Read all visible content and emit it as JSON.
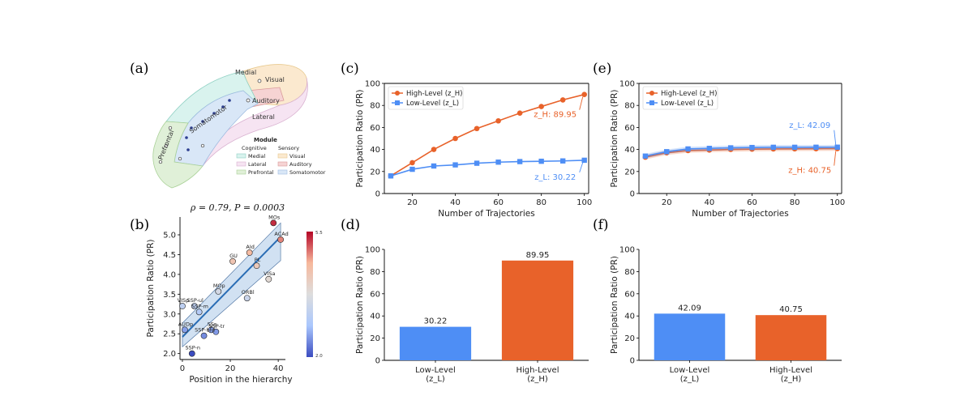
{
  "panels": {
    "a": {
      "letter": "(a)"
    },
    "b": {
      "letter": "(b)"
    },
    "c": {
      "letter": "(c)"
    },
    "d": {
      "letter": "(d)"
    },
    "e": {
      "letter": "(e)"
    },
    "f": {
      "letter": "(f)"
    }
  },
  "brain_map": {
    "region_labels": [
      "Medial",
      "Visual",
      "Auditory",
      "Lateral",
      "Somatomotor",
      "Prefrontal"
    ],
    "legend_title": "Module",
    "legend_groups": [
      "Cognitive",
      "Sensory"
    ],
    "legend_entries": [
      {
        "label": "Medial",
        "color": "#d9f3ee"
      },
      {
        "label": "Visual",
        "color": "#fbe9cf"
      },
      {
        "label": "Lateral",
        "color": "#f6e4f2"
      },
      {
        "label": "Auditory",
        "color": "#f6d3d3"
      },
      {
        "label": "Prefrontal",
        "color": "#e0f0d8"
      },
      {
        "label": "Somatomotor",
        "color": "#d9e7f7"
      }
    ]
  },
  "chart_data": [
    {
      "id": "b",
      "type": "scatter",
      "title": "ρ = 0.79,  P = 0.0003",
      "xlabel": "Position in the hierarchy",
      "ylabel": "Participation Ratio (PR)",
      "xlim": [
        -1,
        43
      ],
      "ylim": [
        1.85,
        5.45
      ],
      "xticks": [
        0,
        20,
        40
      ],
      "yticks": [
        2.0,
        2.5,
        3.0,
        3.5,
        4.0,
        4.5,
        5.0
      ],
      "colorbar": {
        "min_label": "2.0",
        "max_label": "5.5",
        "colors": [
          "#3b4cc0",
          "#aac7fd",
          "#dddddd",
          "#f7b89c",
          "#b40426"
        ]
      },
      "fit_line": {
        "x": [
          0,
          41
        ],
        "y": [
          2.42,
          4.95
        ]
      },
      "points": [
        {
          "label": "MOs",
          "x": 38,
          "y": 5.3
        },
        {
          "label": "ACAd",
          "x": 41,
          "y": 4.88
        },
        {
          "label": "AId",
          "x": 28,
          "y": 4.55
        },
        {
          "label": "GU",
          "x": 21,
          "y": 4.33
        },
        {
          "label": "PL",
          "x": 31,
          "y": 4.22
        },
        {
          "label": "VISa",
          "x": 36,
          "y": 3.88
        },
        {
          "label": "MOp",
          "x": 15,
          "y": 3.57
        },
        {
          "label": "ORBl",
          "x": 27,
          "y": 3.4
        },
        {
          "label": "VISp",
          "x": 0,
          "y": 3.2
        },
        {
          "label": "SSP-ul",
          "x": 5,
          "y": 3.2
        },
        {
          "label": "SSP-m",
          "x": 7,
          "y": 3.05
        },
        {
          "label": "AUDp",
          "x": 1,
          "y": 2.6
        },
        {
          "label": "SSs",
          "x": 12,
          "y": 2.6
        },
        {
          "label": "SSP-tr",
          "x": 14,
          "y": 2.55
        },
        {
          "label": "SSP-bfd",
          "x": 9,
          "y": 2.45
        },
        {
          "label": "SSP-n",
          "x": 4,
          "y": 2.0
        }
      ]
    },
    {
      "id": "c",
      "type": "line",
      "xlabel": "Number of Trajectories",
      "ylabel": "Participation Ratio (PR)",
      "xlim": [
        7,
        102
      ],
      "ylim": [
        0,
        100
      ],
      "xticks": [
        20,
        40,
        60,
        80,
        100
      ],
      "yticks": [
        0,
        20,
        40,
        60,
        80,
        100
      ],
      "x": [
        10,
        20,
        30,
        40,
        50,
        60,
        70,
        80,
        90,
        100
      ],
      "series": [
        {
          "name": "High-Level (z_H)",
          "color": "#e8622a",
          "marker": "circle",
          "values": [
            16,
            28,
            40,
            50,
            59,
            66,
            73,
            79,
            85,
            89.95
          ]
        },
        {
          "name": "Low-Level (z_L)",
          "color": "#4e8ef5",
          "marker": "square",
          "values": [
            16,
            22,
            25,
            26,
            27.5,
            28.5,
            29,
            29.3,
            29.6,
            30.22
          ]
        }
      ],
      "legend": "top-left",
      "annotations": [
        {
          "text": "z_H: 89.95",
          "color": "#e8622a",
          "x": 100,
          "y": 89.95
        },
        {
          "text": "z_L: 30.22",
          "color": "#4e8ef5",
          "x": 100,
          "y": 30.22
        }
      ]
    },
    {
      "id": "d",
      "type": "bar",
      "ylabel": "Participation Ratio (PR)",
      "ylim": [
        0,
        100
      ],
      "yticks": [
        0,
        20,
        40,
        60,
        80,
        100
      ],
      "categories": [
        "Low-Level\n(z_L)",
        "High-Level\n(z_H)"
      ],
      "values": [
        30.22,
        89.95
      ],
      "value_labels": [
        "30.22",
        "89.95"
      ],
      "colors": [
        "#4e8ef5",
        "#e8622a"
      ]
    },
    {
      "id": "e",
      "type": "line",
      "xlabel": "Number of Trajectories",
      "ylabel": "Participation Ratio (PR)",
      "xlim": [
        7,
        102
      ],
      "ylim": [
        0,
        100
      ],
      "xticks": [
        20,
        40,
        60,
        80,
        100
      ],
      "yticks": [
        0,
        20,
        40,
        60,
        80,
        100
      ],
      "x": [
        10,
        20,
        30,
        40,
        50,
        60,
        70,
        80,
        90,
        100
      ],
      "series": [
        {
          "name": "High-Level (z_H)",
          "color": "#e8622a",
          "marker": "circle",
          "values": [
            33,
            37,
            39,
            39.5,
            40,
            40.3,
            40.5,
            40.6,
            40.7,
            40.75
          ]
        },
        {
          "name": "Low-Level (z_L)",
          "color": "#4e8ef5",
          "marker": "square",
          "values": [
            34,
            38,
            40.5,
            41,
            41.5,
            41.8,
            42,
            42,
            42.05,
            42.09
          ]
        }
      ],
      "legend": "top-left",
      "annotations": [
        {
          "text": "z_L: 42.09",
          "color": "#4e8ef5",
          "x": 100,
          "y": 42.09
        },
        {
          "text": "z_H: 40.75",
          "color": "#e8622a",
          "x": 100,
          "y": 40.75
        }
      ]
    },
    {
      "id": "f",
      "type": "bar",
      "ylabel": "Participation Ratio (PR)",
      "ylim": [
        0,
        100
      ],
      "yticks": [
        0,
        20,
        40,
        60,
        80,
        100
      ],
      "categories": [
        "Low-Level\n(z_L)",
        "High-Level\n(z_H)"
      ],
      "values": [
        42.09,
        40.75
      ],
      "value_labels": [
        "42.09",
        "40.75"
      ],
      "colors": [
        "#4e8ef5",
        "#e8622a"
      ]
    }
  ]
}
